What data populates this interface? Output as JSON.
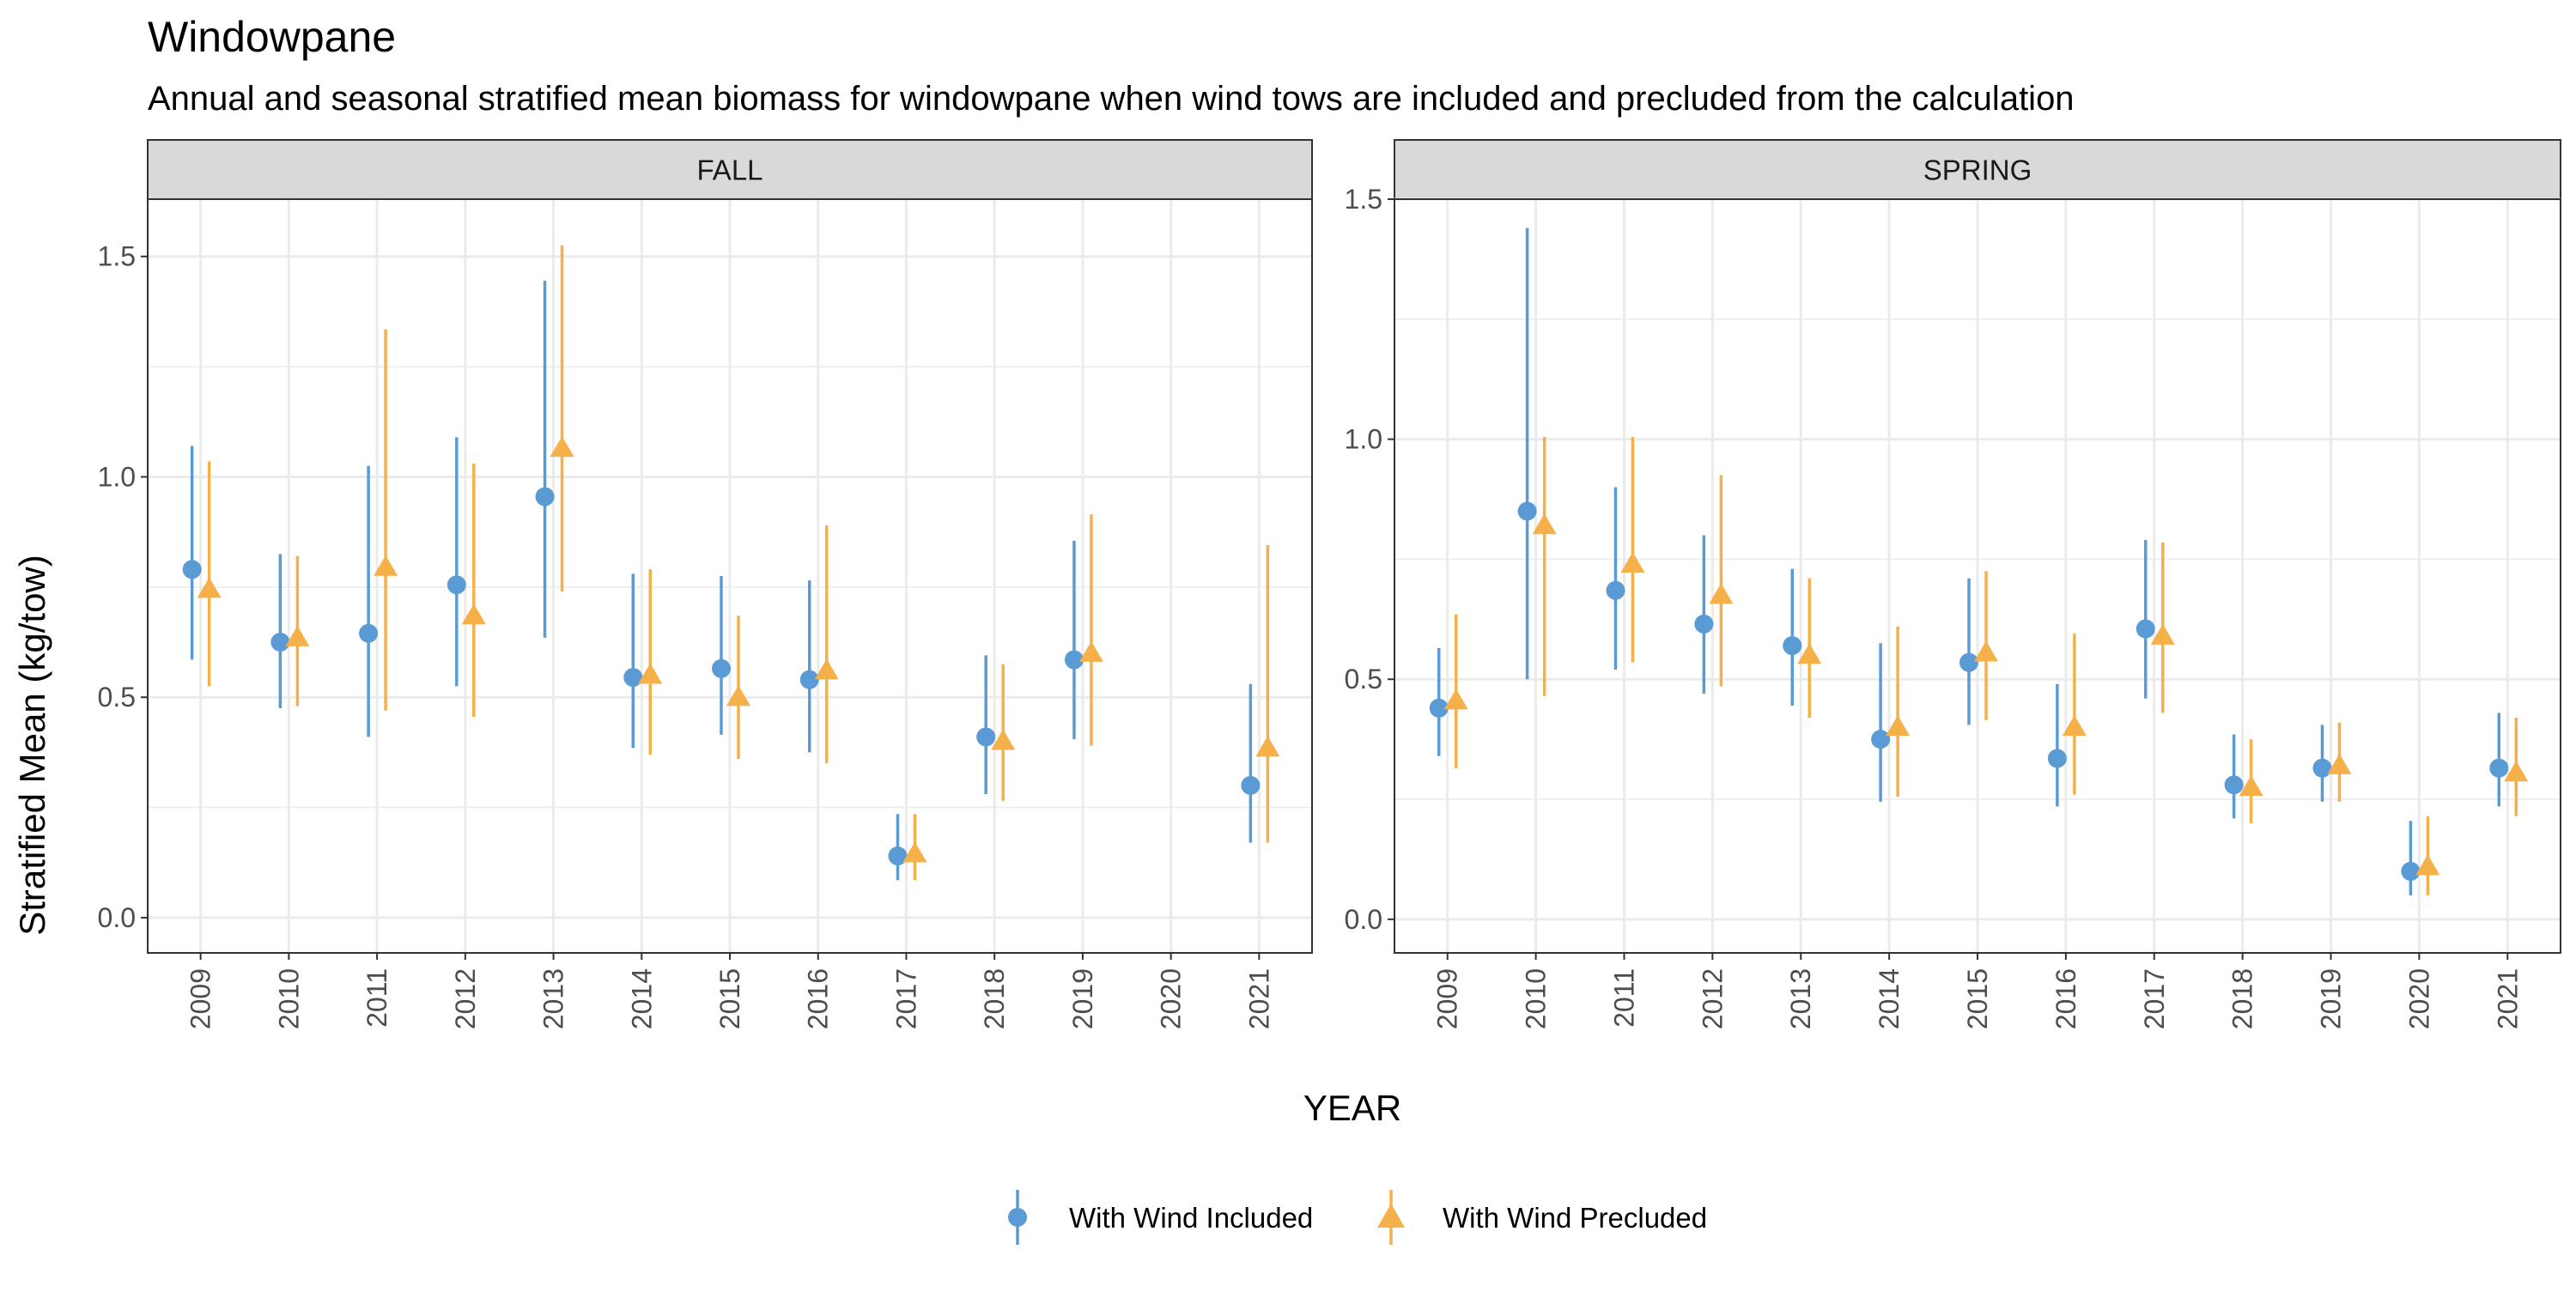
{
  "title": "Windowpane",
  "subtitle": "Annual and seasonal stratified mean biomass for windowpane when wind tows are included and precluded from the calculation",
  "colors": {
    "included": "#5b9bd5",
    "precluded": "#f5b04a",
    "strip_fill": "#d9d9d9",
    "grid": "#ebebeb",
    "panel_border": "#333333"
  },
  "chart_data": {
    "type": "scatter",
    "xlabel": "YEAR",
    "ylabel": "Stratified Mean (kg/tow)",
    "categories": [
      "2009",
      "2010",
      "2011",
      "2012",
      "2013",
      "2014",
      "2015",
      "2016",
      "2017",
      "2018",
      "2019",
      "2020",
      "2021"
    ],
    "legend": {
      "position": "bottom",
      "entries": [
        {
          "name": "With Wind Included",
          "shape": "circle",
          "color": "#5b9bd5"
        },
        {
          "name": "With Wind Precluded",
          "shape": "triangle",
          "color": "#f5b04a"
        }
      ]
    },
    "grid": true,
    "panels": [
      {
        "strip": "FALL",
        "ylim": [
          -0.08,
          1.63
        ],
        "yticks": [
          0.0,
          0.5,
          1.0,
          1.5
        ],
        "ytick_labels": [
          "0.0",
          "0.5",
          "1.0",
          "1.5"
        ],
        "series": [
          {
            "name": "With Wind Included",
            "values": [
              0.79,
              0.625,
              0.645,
              0.755,
              0.955,
              0.545,
              0.565,
              0.54,
              0.14,
              0.41,
              0.585,
              null,
              0.3
            ],
            "lower": [
              0.585,
              0.475,
              0.41,
              0.525,
              0.635,
              0.385,
              0.415,
              0.375,
              0.085,
              0.28,
              0.405,
              null,
              0.17
            ],
            "upper": [
              1.07,
              0.825,
              1.025,
              1.09,
              1.445,
              0.78,
              0.775,
              0.765,
              0.235,
              0.595,
              0.855,
              null,
              0.53
            ]
          },
          {
            "name": "With Wind Precluded",
            "values": [
              0.745,
              0.635,
              0.795,
              0.685,
              1.065,
              0.55,
              0.5,
              0.56,
              0.145,
              0.4,
              0.6,
              null,
              0.385
            ],
            "lower": [
              0.525,
              0.48,
              0.47,
              0.455,
              0.74,
              0.37,
              0.36,
              0.35,
              0.085,
              0.265,
              0.39,
              null,
              0.17
            ],
            "upper": [
              1.035,
              0.82,
              1.335,
              1.03,
              1.525,
              0.79,
              0.685,
              0.89,
              0.235,
              0.575,
              0.915,
              null,
              0.845
            ]
          }
        ]
      },
      {
        "strip": "SPRING",
        "ylim": [
          -0.07,
          1.5
        ],
        "yticks": [
          0.0,
          0.5,
          1.0,
          1.5
        ],
        "ytick_labels": [
          "0.0",
          "0.5",
          "1.0",
          "1.5"
        ],
        "series": [
          {
            "name": "With Wind Included",
            "values": [
              0.44,
              0.85,
              0.685,
              0.615,
              0.57,
              0.375,
              0.535,
              0.335,
              0.605,
              0.28,
              0.315,
              0.1,
              0.315
            ],
            "lower": [
              0.34,
              0.5,
              0.52,
              0.47,
              0.445,
              0.245,
              0.405,
              0.235,
              0.46,
              0.21,
              0.245,
              0.05,
              0.235
            ],
            "upper": [
              0.565,
              1.44,
              0.9,
              0.8,
              0.73,
              0.575,
              0.71,
              0.49,
              0.79,
              0.385,
              0.405,
              0.205,
              0.43
            ]
          },
          {
            "name": "With Wind Precluded",
            "values": [
              0.455,
              0.82,
              0.74,
              0.675,
              0.55,
              0.4,
              0.555,
              0.4,
              0.59,
              0.275,
              0.32,
              0.11,
              0.305
            ],
            "lower": [
              0.315,
              0.465,
              0.535,
              0.485,
              0.42,
              0.255,
              0.415,
              0.26,
              0.43,
              0.2,
              0.245,
              0.05,
              0.215
            ],
            "upper": [
              0.635,
              1.005,
              1.005,
              0.925,
              0.71,
              0.61,
              0.725,
              0.595,
              0.785,
              0.375,
              0.41,
              0.215,
              0.42
            ]
          }
        ]
      }
    ]
  }
}
